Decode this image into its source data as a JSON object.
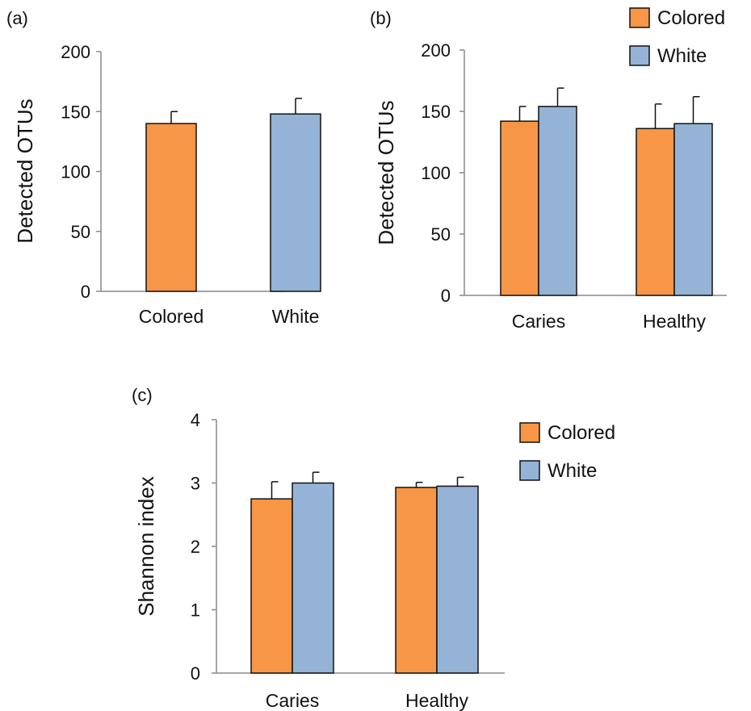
{
  "colors": {
    "colored": "#F79646",
    "white": "#95B3D7",
    "axis": "#888888",
    "outline": "#111111"
  },
  "chart_data": [
    {
      "type": "bar",
      "panel": "(a)",
      "categories": [
        "Colored",
        "White"
      ],
      "values": [
        140,
        148
      ],
      "errors": [
        10,
        13
      ],
      "ylabel": "Detected OTUs",
      "ylim": [
        0,
        200
      ],
      "yticks": [
        "0",
        "50",
        "100",
        "150",
        "200"
      ],
      "series_colors": [
        "colored",
        "white"
      ]
    },
    {
      "type": "bar",
      "panel": "(b)",
      "categories": [
        "Caries",
        "Healthy"
      ],
      "series": [
        {
          "name": "Colored",
          "values": [
            142,
            136
          ],
          "errors": [
            12,
            20
          ]
        },
        {
          "name": "White",
          "values": [
            154,
            140
          ],
          "errors": [
            15,
            22
          ]
        }
      ],
      "ylabel": "Detected OTUs",
      "ylim": [
        0,
        200
      ],
      "yticks": [
        "0",
        "50",
        "100",
        "150",
        "200"
      ],
      "legend": "top-right"
    },
    {
      "type": "bar",
      "panel": "(c)",
      "categories": [
        "Caries",
        "Healthy"
      ],
      "series": [
        {
          "name": "Colored",
          "values": [
            2.75,
            2.93
          ],
          "errors": [
            0.27,
            0.08
          ]
        },
        {
          "name": "White",
          "values": [
            3.0,
            2.95
          ],
          "errors": [
            0.17,
            0.14
          ]
        }
      ],
      "ylabel": "Shannon index",
      "ylim": [
        0,
        4
      ],
      "yticks": [
        "0",
        "1",
        "2",
        "3",
        "4"
      ],
      "legend": "right"
    }
  ]
}
